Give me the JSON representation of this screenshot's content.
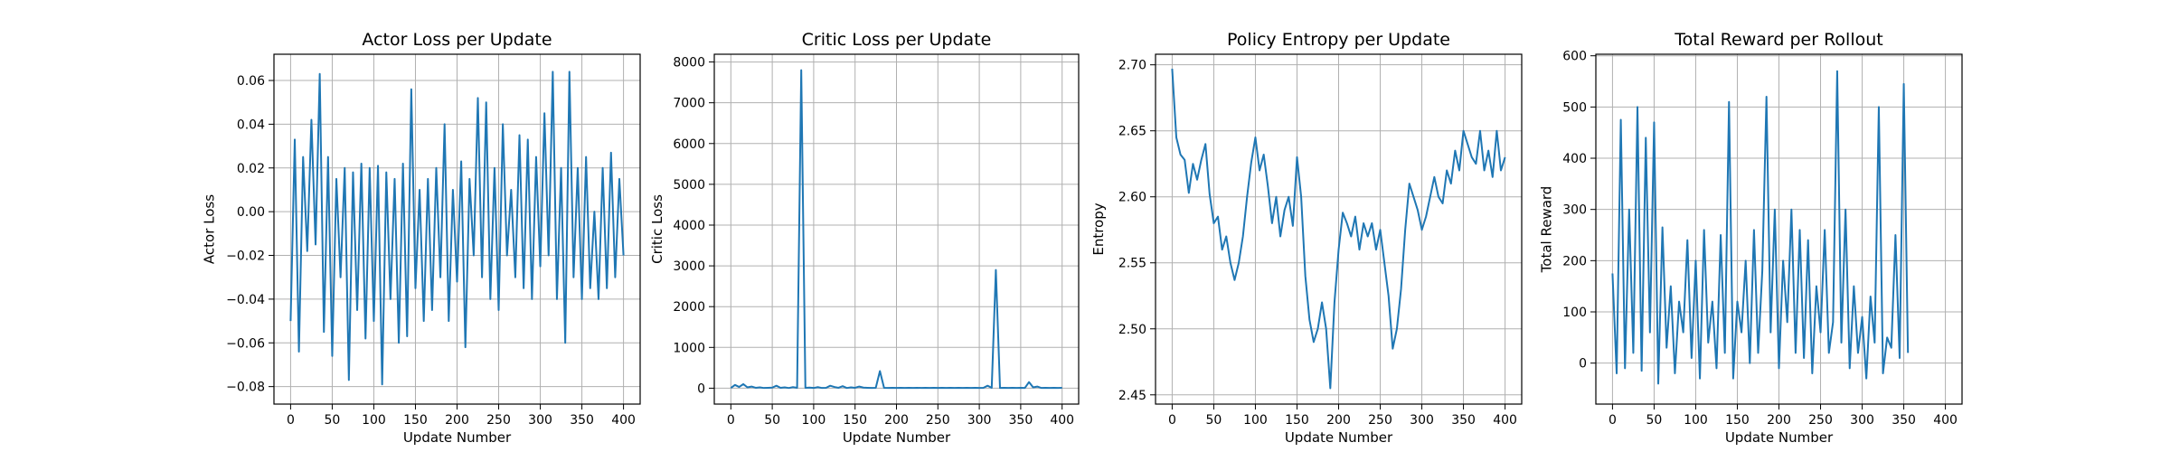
{
  "chart_data": [
    {
      "type": "line",
      "title": "Actor Loss per Update",
      "xlabel": "Update Number",
      "ylabel": "Actor Loss",
      "xlim": [
        -20,
        420
      ],
      "ylim": [
        -0.088,
        0.072
      ],
      "xticks": [
        0,
        50,
        100,
        150,
        200,
        250,
        300,
        350,
        400
      ],
      "yticks": [
        -0.08,
        -0.06,
        -0.04,
        -0.02,
        0.0,
        0.02,
        0.04,
        0.06
      ],
      "ytick_labels": [
        "−0.08",
        "−0.06",
        "−0.04",
        "−0.02",
        "0.00",
        "0.02",
        "0.04",
        "0.06"
      ],
      "grid": true,
      "color": "#1f77b4",
      "series": [
        {
          "name": "Actor Loss",
          "x_start": 0,
          "x_step": 5,
          "values": [
            -0.05,
            0.033,
            -0.064,
            0.025,
            -0.018,
            0.042,
            -0.015,
            0.063,
            -0.055,
            0.025,
            -0.066,
            0.015,
            -0.03,
            0.02,
            -0.077,
            0.018,
            -0.045,
            0.022,
            -0.058,
            0.02,
            -0.05,
            0.021,
            -0.079,
            0.018,
            -0.04,
            0.015,
            -0.06,
            0.022,
            -0.057,
            0.056,
            -0.035,
            0.01,
            -0.05,
            0.015,
            -0.045,
            0.02,
            -0.03,
            0.04,
            -0.05,
            0.01,
            -0.032,
            0.023,
            -0.062,
            0.015,
            -0.02,
            0.052,
            -0.03,
            0.05,
            -0.04,
            0.02,
            -0.045,
            0.04,
            -0.02,
            0.01,
            -0.03,
            0.035,
            -0.035,
            0.033,
            -0.04,
            0.025,
            -0.025,
            0.045,
            -0.02,
            0.064,
            -0.04,
            0.02,
            -0.06,
            0.064,
            -0.03,
            0.02,
            -0.04,
            0.025,
            -0.035,
            0.0,
            -0.04,
            0.02,
            -0.035,
            0.027,
            -0.03,
            0.015,
            -0.02
          ]
        }
      ]
    },
    {
      "type": "line",
      "title": "Critic Loss per Update",
      "xlabel": "Update Number",
      "ylabel": "Critic Loss",
      "xlim": [
        -20,
        420
      ],
      "ylim": [
        -390,
        8190
      ],
      "xticks": [
        0,
        50,
        100,
        150,
        200,
        250,
        300,
        350,
        400
      ],
      "yticks": [
        0,
        1000,
        2000,
        3000,
        4000,
        5000,
        6000,
        7000,
        8000
      ],
      "ytick_labels": [
        "0",
        "1000",
        "2000",
        "3000",
        "4000",
        "5000",
        "6000",
        "7000",
        "8000"
      ],
      "grid": true,
      "color": "#1f77b4",
      "series": [
        {
          "name": "Critic Loss",
          "x_start": 0,
          "x_step": 5,
          "values": [
            5,
            80,
            30,
            100,
            20,
            40,
            10,
            20,
            5,
            10,
            15,
            60,
            10,
            20,
            5,
            25,
            10,
            7800,
            10,
            15,
            5,
            25,
            5,
            10,
            60,
            30,
            10,
            50,
            5,
            20,
            10,
            40,
            15,
            10,
            5,
            10,
            420,
            10,
            5,
            10,
            5,
            10,
            5,
            8,
            5,
            10,
            5,
            8,
            5,
            10,
            5,
            8,
            5,
            10,
            5,
            8,
            5,
            10,
            5,
            8,
            5,
            10,
            60,
            10,
            2900,
            5,
            10,
            5,
            8,
            5,
            10,
            5,
            150,
            20,
            40,
            5,
            10,
            5,
            8,
            5,
            10
          ]
        }
      ]
    },
    {
      "type": "line",
      "title": "Policy Entropy per Update",
      "xlabel": "Update Number",
      "ylabel": "Entropy",
      "xlim": [
        -20,
        420
      ],
      "ylim": [
        2.443,
        2.708
      ],
      "xticks": [
        0,
        50,
        100,
        150,
        200,
        250,
        300,
        350,
        400
      ],
      "yticks": [
        2.45,
        2.5,
        2.55,
        2.6,
        2.65,
        2.7
      ],
      "ytick_labels": [
        "2.45",
        "2.50",
        "2.55",
        "2.60",
        "2.65",
        "2.70"
      ],
      "grid": true,
      "color": "#1f77b4",
      "series": [
        {
          "name": "Entropy",
          "x_start": 0,
          "x_step": 5,
          "values": [
            2.697,
            2.645,
            2.632,
            2.628,
            2.603,
            2.625,
            2.613,
            2.628,
            2.64,
            2.602,
            2.58,
            2.585,
            2.56,
            2.57,
            2.55,
            2.537,
            2.55,
            2.57,
            2.6,
            2.626,
            2.645,
            2.62,
            2.632,
            2.608,
            2.58,
            2.6,
            2.57,
            2.59,
            2.6,
            2.578,
            2.63,
            2.6,
            2.54,
            2.507,
            2.49,
            2.5,
            2.52,
            2.5,
            2.455,
            2.52,
            2.56,
            2.588,
            2.58,
            2.57,
            2.585,
            2.56,
            2.58,
            2.57,
            2.58,
            2.56,
            2.575,
            2.55,
            2.525,
            2.485,
            2.5,
            2.53,
            2.575,
            2.61,
            2.6,
            2.59,
            2.575,
            2.585,
            2.6,
            2.615,
            2.6,
            2.595,
            2.62,
            2.61,
            2.635,
            2.62,
            2.65,
            2.64,
            2.63,
            2.625,
            2.65,
            2.62,
            2.635,
            2.615,
            2.65,
            2.62,
            2.63
          ]
        }
      ]
    },
    {
      "type": "line",
      "title": "Total Reward per Rollout",
      "xlabel": "Update Number",
      "ylabel": "Total Reward",
      "xlim": [
        -20,
        420
      ],
      "ylim": [
        -80,
        603
      ],
      "xticks": [
        0,
        50,
        100,
        150,
        200,
        250,
        300,
        350,
        400
      ],
      "yticks": [
        0,
        100,
        200,
        300,
        400,
        500,
        600
      ],
      "ytick_labels": [
        "0",
        "100",
        "200",
        "300",
        "400",
        "500",
        "600"
      ],
      "grid": true,
      "color": "#1f77b4",
      "series": [
        {
          "name": "Total Reward",
          "x_start": 0,
          "x_step": 5,
          "values": [
            175,
            -20,
            475,
            -10,
            300,
            20,
            500,
            -15,
            440,
            60,
            470,
            -40,
            265,
            30,
            150,
            -20,
            120,
            60,
            240,
            10,
            200,
            -30,
            260,
            40,
            120,
            -10,
            250,
            20,
            510,
            -30,
            120,
            60,
            200,
            0,
            260,
            20,
            180,
            520,
            60,
            300,
            -10,
            200,
            80,
            300,
            20,
            260,
            10,
            240,
            -20,
            150,
            60,
            260,
            20,
            80,
            570,
            40,
            300,
            -10,
            150,
            20,
            90,
            -30,
            130,
            40,
            500,
            -20,
            50,
            30,
            250,
            10,
            545,
            20
          ]
        }
      ]
    }
  ]
}
